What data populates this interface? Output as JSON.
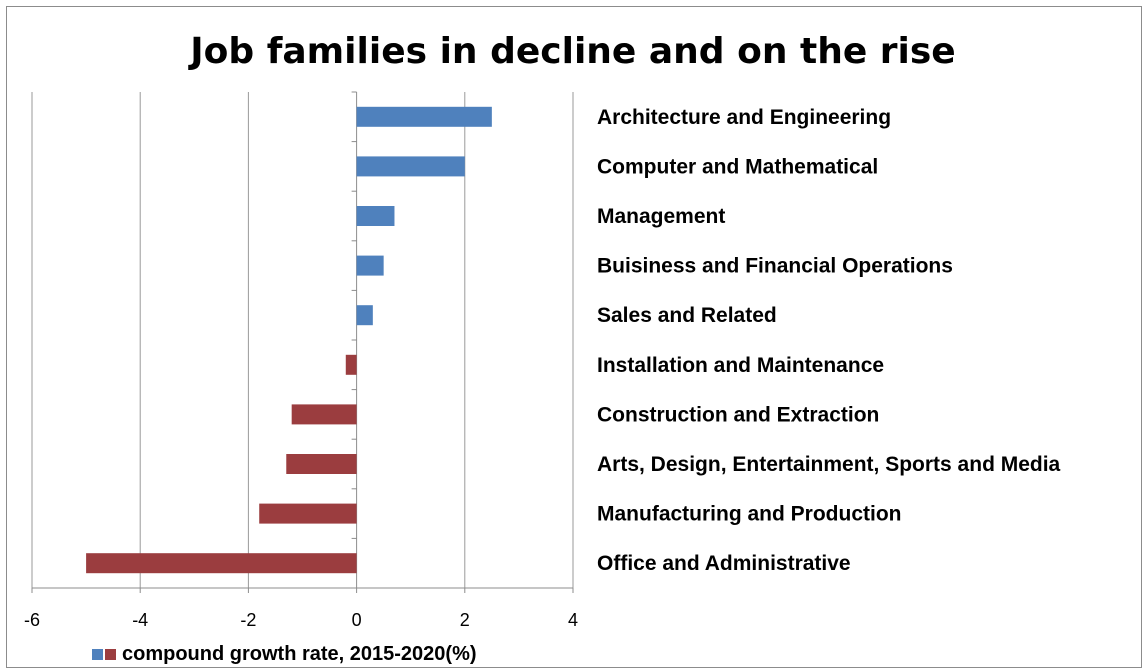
{
  "chart_data": {
    "type": "bar",
    "orientation": "horizontal",
    "title": "Job families in decline and on the rise",
    "categories": [
      "Architecture and Engineering",
      "Computer and Mathematical",
      "Management",
      "Buisiness and Financial Operations",
      "Sales and Related",
      "Installation and Maintenance",
      "Construction and Extraction",
      "Arts, Design, Entertainment, Sports and Media",
      "Manufacturing and Production",
      "Office and Administrative"
    ],
    "values": [
      2.5,
      2.0,
      0.7,
      0.5,
      0.3,
      -0.2,
      -1.2,
      -1.3,
      -1.8,
      -5.0
    ],
    "xlim": [
      -6,
      4
    ],
    "xticks": [
      "-6",
      "-4",
      "-2",
      "0",
      "2",
      "4"
    ],
    "xlabel": "",
    "ylabel": "",
    "grid": "vertical",
    "legend": {
      "label": "compound growth rate, 2015-2020(%)",
      "placement": "bottom-left"
    },
    "colors": {
      "positive": "#4f81bd",
      "negative": "#9b3d3f"
    }
  }
}
